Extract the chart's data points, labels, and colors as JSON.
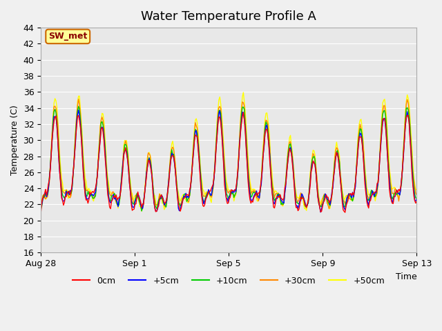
{
  "title": "Water Temperature Profile A",
  "xlabel": "Time",
  "ylabel": "Temperature (C)",
  "ylim": [
    16,
    44
  ],
  "yticks": [
    16,
    18,
    20,
    22,
    24,
    26,
    28,
    30,
    32,
    34,
    36,
    38,
    40,
    42,
    44
  ],
  "series_colors": {
    "0cm": "#ff0000",
    "+5cm": "#0000ff",
    "+10cm": "#00cc00",
    "+30cm": "#ff8800",
    "+50cm": "#ffff00"
  },
  "series_labels": [
    "0cm",
    "+5cm",
    "+10cm",
    "+30cm",
    "+50cm"
  ],
  "annotation_label": "SW_met",
  "annotation_bg": "#ffff99",
  "annotation_border": "#cc6600",
  "background_color": "#e8e8e8",
  "plot_bg": "#e8e8e8",
  "grid_color": "#ffffff",
  "title_fontsize": 13,
  "axis_fontsize": 9,
  "tick_fontsize": 9,
  "legend_fontsize": 9,
  "n_points": 400,
  "xtick_positions": [
    0,
    4,
    8,
    12,
    16
  ],
  "xtick_labels": [
    "Aug 28",
    "Sep 1",
    "Sep 5",
    "Sep 9",
    "Sep 13"
  ]
}
